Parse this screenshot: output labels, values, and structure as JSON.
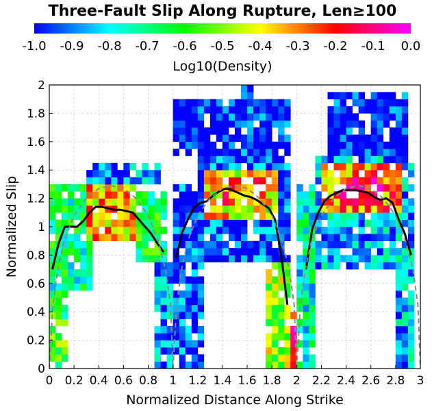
{
  "chart_data": {
    "type": "heatmap",
    "title": "Three-Fault Slip Along Rupture, Len≥100",
    "xlabel": "Normalized Distance Along Strike",
    "ylabel": "Normalized Slip",
    "colorbar_label": "Log10(Density)",
    "xlim": [
      0,
      3
    ],
    "ylim": [
      0,
      2
    ],
    "clim": [
      -1.0,
      0.0
    ],
    "x_ticks": [
      "0",
      "0.2",
      "0.4",
      "0.6",
      "0.8",
      "1",
      "1.2",
      "1.4",
      "1.6",
      "1.8",
      "2",
      "2.2",
      "2.4",
      "2.6",
      "2.8",
      "3"
    ],
    "y_ticks": [
      "0",
      "0.2",
      "0.4",
      "0.6",
      "0.8",
      "1",
      "1.2",
      "1.4",
      "1.6",
      "1.8",
      "2"
    ],
    "colorbar_ticks": [
      "-1.0",
      "-0.9",
      "-0.8",
      "-0.7",
      "-0.6",
      "-0.5",
      "-0.4",
      "-0.3",
      "-0.2",
      "-0.1",
      "0.0"
    ],
    "colormap": [
      "#0000ff",
      "#0080ff",
      "#00ffff",
      "#00ff80",
      "#00ff00",
      "#80ff00",
      "#ffff00",
      "#ff8000",
      "#ff0000",
      "#ff0080",
      "#ff00ff"
    ],
    "grid": true,
    "heat_bin_x": 0.05,
    "heat_bin_y": 0.05,
    "heat_regions": [
      {
        "xr": [
          0.0,
          0.35
        ],
        "yr": [
          0.55,
          1.3
        ],
        "density": -0.7
      },
      {
        "xr": [
          0.3,
          0.7
        ],
        "yr": [
          0.9,
          1.3
        ],
        "density": -0.35
      },
      {
        "xr": [
          0.7,
          0.95
        ],
        "yr": [
          0.75,
          1.25
        ],
        "density": -0.65
      },
      {
        "xr": [
          0.3,
          0.9
        ],
        "yr": [
          1.3,
          1.45
        ],
        "density": -0.9
      },
      {
        "xr": [
          0.0,
          0.15
        ],
        "yr": [
          0.0,
          0.55
        ],
        "density": -0.6
      },
      {
        "xr": [
          0.85,
          1.0
        ],
        "yr": [
          0.0,
          0.75
        ],
        "density": -0.85
      },
      {
        "xr": [
          1.0,
          1.25
        ],
        "yr": [
          0.0,
          1.3
        ],
        "density": -0.95
      },
      {
        "xr": [
          1.2,
          1.95
        ],
        "yr": [
          0.75,
          1.5
        ],
        "density": -0.95
      },
      {
        "xr": [
          1.25,
          1.85
        ],
        "yr": [
          1.05,
          1.4
        ],
        "density": -0.4
      },
      {
        "xr": [
          1.4,
          1.75
        ],
        "yr": [
          1.15,
          1.35
        ],
        "density": -0.28
      },
      {
        "xr": [
          1.0,
          1.95
        ],
        "yr": [
          1.5,
          1.9
        ],
        "density": -1.0
      },
      {
        "xr": [
          1.55,
          1.65
        ],
        "yr": [
          1.9,
          2.0
        ],
        "density": -1.0
      },
      {
        "xr": [
          1.75,
          1.95
        ],
        "yr": [
          0.0,
          0.75
        ],
        "density": -0.5
      },
      {
        "xr": [
          1.95,
          2.0
        ],
        "yr": [
          0.0,
          0.45
        ],
        "density": -0.2
      },
      {
        "xr": [
          2.0,
          2.15
        ],
        "yr": [
          0.0,
          1.3
        ],
        "density": -0.75
      },
      {
        "xr": [
          2.15,
          2.95
        ],
        "yr": [
          0.7,
          1.5
        ],
        "density": -0.85
      },
      {
        "xr": [
          2.2,
          2.85
        ],
        "yr": [
          1.1,
          1.45
        ],
        "density": -0.3
      },
      {
        "xr": [
          2.35,
          2.7
        ],
        "yr": [
          1.15,
          1.35
        ],
        "density": -0.15
      },
      {
        "xr": [
          2.25,
          2.9
        ],
        "yr": [
          1.45,
          1.95
        ],
        "density": -1.0
      },
      {
        "xr": [
          2.8,
          2.95
        ],
        "yr": [
          0.0,
          0.7
        ],
        "density": -0.85
      }
    ],
    "series": [
      {
        "x": [
          0.025,
          0.075,
          0.125,
          0.175,
          0.225,
          0.275,
          0.325,
          0.375,
          0.425,
          0.475,
          0.525,
          0.575,
          0.625,
          0.675,
          0.725,
          0.775,
          0.825,
          0.875,
          0.925
        ],
        "y": [
          0.7,
          0.88,
          1.0,
          1.0,
          1.0,
          1.04,
          1.1,
          1.14,
          1.14,
          1.13,
          1.12,
          1.12,
          1.11,
          1.1,
          1.05,
          1.0,
          0.95,
          0.88,
          0.82
        ]
      },
      {
        "x": [
          1.025,
          1.075,
          1.125,
          1.175,
          1.225,
          1.275,
          1.325,
          1.375,
          1.425,
          1.475,
          1.525,
          1.575,
          1.625,
          1.675,
          1.725,
          1.775,
          1.825,
          1.875,
          1.925
        ],
        "y": [
          0.78,
          0.96,
          1.06,
          1.14,
          1.17,
          1.18,
          1.22,
          1.25,
          1.27,
          1.26,
          1.24,
          1.22,
          1.21,
          1.19,
          1.16,
          1.13,
          1.05,
          0.8,
          0.45
        ]
      },
      {
        "x": [
          2.075,
          2.125,
          2.175,
          2.225,
          2.275,
          2.325,
          2.375,
          2.425,
          2.475,
          2.525,
          2.575,
          2.625,
          2.675,
          2.725,
          2.775,
          2.825,
          2.875,
          2.925
        ],
        "y": [
          0.7,
          0.98,
          1.1,
          1.18,
          1.22,
          1.24,
          1.26,
          1.26,
          1.26,
          1.25,
          1.24,
          1.21,
          1.19,
          1.2,
          1.17,
          1.05,
          0.95,
          0.8
        ]
      },
      {
        "dashed": true,
        "x": [
          0.0,
          0.03,
          0.07,
          0.12,
          0.2,
          0.3,
          0.4,
          0.5,
          0.6,
          0.7,
          0.8,
          0.88,
          0.94,
          0.98,
          1.0
        ],
        "y": [
          0.0,
          0.45,
          0.7,
          0.9,
          1.08,
          1.2,
          1.27,
          1.29,
          1.27,
          1.2,
          1.08,
          0.9,
          0.7,
          0.45,
          0.0
        ]
      },
      {
        "dashed": true,
        "x": [
          1.0,
          1.03,
          1.07,
          1.12,
          1.2,
          1.3,
          1.4,
          1.5,
          1.6,
          1.7,
          1.8,
          1.88,
          1.94,
          1.98,
          2.0
        ],
        "y": [
          0.0,
          0.45,
          0.7,
          0.9,
          1.08,
          1.2,
          1.27,
          1.29,
          1.27,
          1.2,
          1.08,
          0.9,
          0.7,
          0.45,
          0.0
        ]
      },
      {
        "dashed": true,
        "x": [
          2.0,
          2.03,
          2.07,
          2.12,
          2.2,
          2.3,
          2.4,
          2.5,
          2.6,
          2.7,
          2.8,
          2.88,
          2.94,
          2.98,
          3.0
        ],
        "y": [
          0.0,
          0.45,
          0.7,
          0.9,
          1.08,
          1.2,
          1.27,
          1.29,
          1.27,
          1.2,
          1.08,
          0.9,
          0.7,
          0.45,
          0.0
        ]
      }
    ]
  }
}
